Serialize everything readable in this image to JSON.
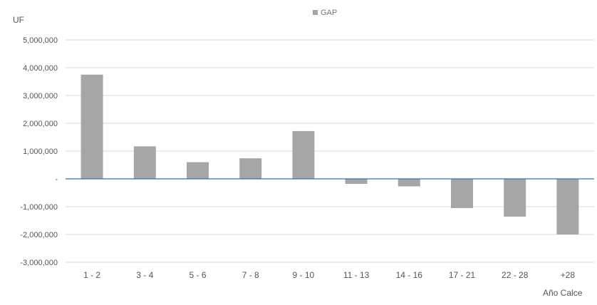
{
  "chart_data": {
    "type": "bar",
    "title": "",
    "ylabel": "UF",
    "xlabel": "Año Calce",
    "categories": [
      "1 - 2",
      "3 - 4",
      "5 - 6",
      "7 - 8",
      "9 - 10",
      "11 - 13",
      "14 - 16",
      "17 - 21",
      "22 - 28",
      "+28"
    ],
    "series": [
      {
        "name": "GAP",
        "color": "#a6a6a6",
        "values": [
          3750000,
          1170000,
          600000,
          740000,
          1720000,
          -180000,
          -270000,
          -1050000,
          -1360000,
          -2000000
        ]
      }
    ],
    "ylim": [
      -3000000,
      5000000
    ],
    "y_ticks": [
      5000000,
      4000000,
      3000000,
      2000000,
      1000000,
      0,
      -1000000,
      -2000000,
      -3000000
    ],
    "y_tick_labels": [
      "5,000,000",
      "4,000,000",
      "3,000,000",
      "2,000,000",
      "1,000,000",
      "-",
      "-1,000,000",
      "-2,000,000",
      "-3,000,000"
    ],
    "grid": true,
    "legend_position": "top-center",
    "zero_line_color": "#2e75b6",
    "gridline_color": "#d9d9d9"
  }
}
